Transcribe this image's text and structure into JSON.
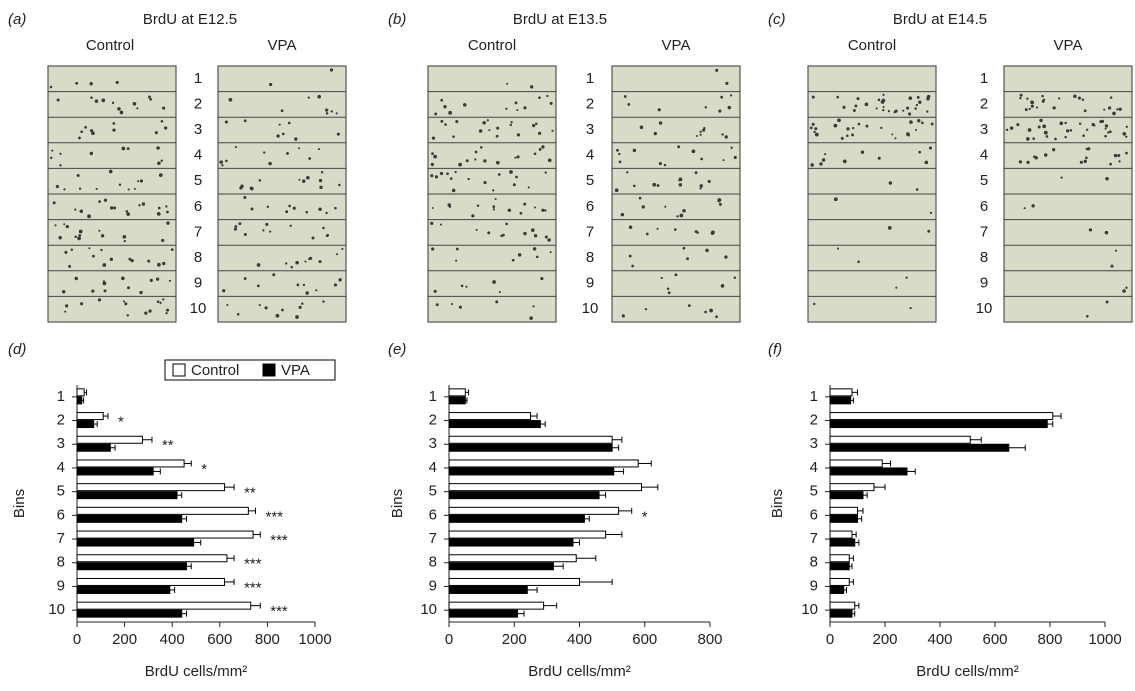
{
  "micrographs": [
    {
      "panel": "(a)",
      "title": "BrdU at E12.5",
      "columns": [
        "Control",
        "VPA"
      ],
      "bins": [
        1,
        2,
        3,
        4,
        5,
        6,
        7,
        8,
        9,
        10
      ]
    },
    {
      "panel": "(b)",
      "title": "BrdU at E13.5",
      "columns": [
        "Control",
        "VPA"
      ],
      "bins": [
        1,
        2,
        3,
        4,
        5,
        6,
        7,
        8,
        9,
        10
      ]
    },
    {
      "panel": "(c)",
      "title": "BrdU at E14.5",
      "columns": [
        "Control",
        "VPA"
      ],
      "bins": [
        1,
        2,
        3,
        4,
        5,
        6,
        7,
        8,
        9,
        10
      ]
    }
  ],
  "chart_data": [
    {
      "type": "bar",
      "panel": "(d)",
      "orientation": "horizontal",
      "x_label": "BrdU cells/mm²",
      "y_label": "Bins",
      "categories": [
        1,
        2,
        3,
        4,
        5,
        6,
        7,
        8,
        9,
        10
      ],
      "series": [
        {
          "name": "Control",
          "color": "#ffffff",
          "values": [
            30,
            110,
            275,
            450,
            620,
            720,
            740,
            630,
            620,
            730
          ],
          "errors": [
            10,
            20,
            40,
            30,
            40,
            30,
            30,
            30,
            40,
            40
          ]
        },
        {
          "name": "VPA",
          "color": "#000000",
          "values": [
            20,
            70,
            140,
            320,
            420,
            440,
            490,
            460,
            390,
            440
          ],
          "errors": [
            8,
            15,
            20,
            30,
            20,
            20,
            30,
            20,
            20,
            20
          ]
        }
      ],
      "significance": [
        null,
        "*",
        "**",
        "*",
        "**",
        "***",
        "***",
        "***",
        "***",
        "***"
      ],
      "xlim": [
        0,
        1000
      ],
      "xticks": [
        0,
        200,
        400,
        600,
        800,
        1000
      ],
      "legend": "top-right"
    },
    {
      "type": "bar",
      "panel": "(e)",
      "orientation": "horizontal",
      "x_label": "BrdU cells/mm²",
      "y_label": "Bins",
      "categories": [
        1,
        2,
        3,
        4,
        5,
        6,
        7,
        8,
        9,
        10
      ],
      "series": [
        {
          "color": "#ffffff",
          "values": [
            50,
            250,
            500,
            580,
            590,
            520,
            480,
            390,
            400,
            290
          ],
          "errors": [
            10,
            20,
            30,
            40,
            50,
            40,
            50,
            60,
            100,
            40
          ]
        },
        {
          "color": "#000000",
          "values": [
            50,
            280,
            500,
            505,
            460,
            415,
            380,
            320,
            240,
            210
          ],
          "errors": [
            5,
            15,
            20,
            30,
            20,
            15,
            20,
            30,
            30,
            20
          ]
        }
      ],
      "significance": [
        null,
        null,
        null,
        null,
        null,
        "*",
        null,
        null,
        null,
        null
      ],
      "xlim": [
        0,
        800
      ],
      "xticks": [
        0,
        200,
        400,
        600,
        800
      ]
    },
    {
      "type": "bar",
      "panel": "(f)",
      "orientation": "horizontal",
      "x_label": "BrdU cells/mm²",
      "y_label": "Bins",
      "categories": [
        1,
        2,
        3,
        4,
        5,
        6,
        7,
        8,
        9,
        10
      ],
      "series": [
        {
          "color": "#ffffff",
          "values": [
            80,
            810,
            510,
            190,
            160,
            100,
            80,
            70,
            70,
            90
          ],
          "errors": [
            20,
            30,
            40,
            30,
            40,
            20,
            15,
            15,
            15,
            15
          ]
        },
        {
          "color": "#000000",
          "values": [
            75,
            790,
            650,
            280,
            120,
            100,
            90,
            70,
            50,
            80
          ],
          "errors": [
            10,
            20,
            60,
            30,
            15,
            15,
            15,
            10,
            10,
            10
          ]
        }
      ],
      "significance": [
        null,
        null,
        null,
        null,
        null,
        null,
        null,
        null,
        null,
        null
      ],
      "xlim": [
        0,
        1000
      ],
      "xticks": [
        0,
        200,
        400,
        600,
        800,
        1000
      ]
    }
  ]
}
